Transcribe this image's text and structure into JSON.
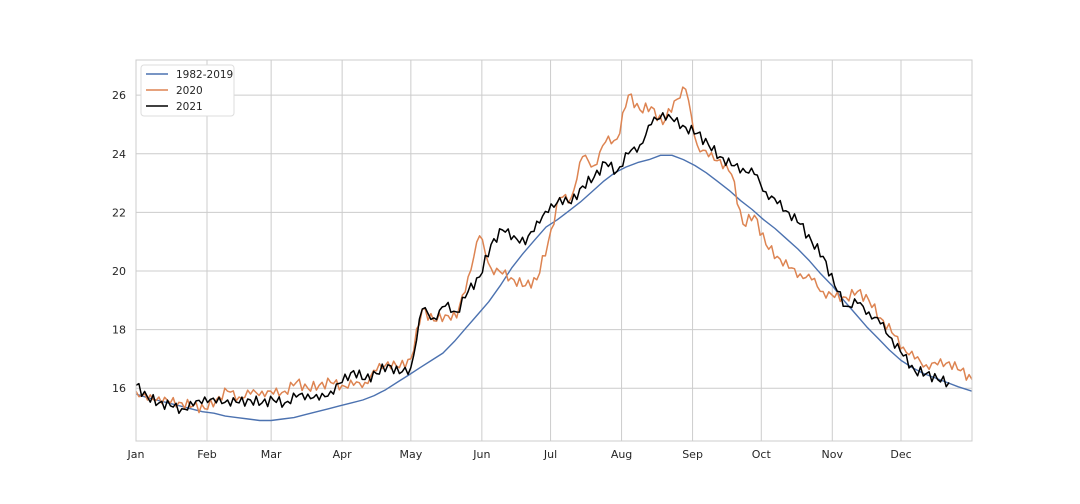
{
  "chart_data": {
    "type": "line",
    "title": "",
    "xlabel": "",
    "ylabel": "",
    "x_unit": "day of year",
    "xlim": [
      1,
      366
    ],
    "ylim": [
      14.2,
      27.2
    ],
    "x_ticks": [
      {
        "day": 1,
        "label": "Jan"
      },
      {
        "day": 32,
        "label": "Feb"
      },
      {
        "day": 60,
        "label": "Mar"
      },
      {
        "day": 91,
        "label": "Apr"
      },
      {
        "day": 121,
        "label": "May"
      },
      {
        "day": 152,
        "label": "Jun"
      },
      {
        "day": 182,
        "label": "Jul"
      },
      {
        "day": 213,
        "label": "Aug"
      },
      {
        "day": 244,
        "label": "Sep"
      },
      {
        "day": 274,
        "label": "Oct"
      },
      {
        "day": 305,
        "label": "Nov"
      },
      {
        "day": 335,
        "label": "Dec"
      }
    ],
    "y_ticks": [
      16,
      18,
      20,
      22,
      24,
      26
    ],
    "grid": true,
    "legend_position": "top-left",
    "series": [
      {
        "name": "1982-2019",
        "color": "#4c72b0",
        "x": [
          1,
          5,
          10,
          15,
          20,
          25,
          30,
          35,
          40,
          45,
          50,
          55,
          60,
          65,
          70,
          75,
          80,
          85,
          90,
          95,
          100,
          105,
          110,
          115,
          120,
          125,
          130,
          135,
          140,
          145,
          150,
          155,
          160,
          165,
          170,
          175,
          180,
          185,
          190,
          195,
          200,
          205,
          210,
          215,
          220,
          225,
          230,
          235,
          240,
          245,
          250,
          255,
          260,
          265,
          270,
          275,
          280,
          285,
          290,
          295,
          300,
          305,
          310,
          315,
          320,
          325,
          330,
          335,
          340,
          345,
          350,
          355,
          360,
          366
        ],
        "y": [
          15.8,
          15.7,
          15.6,
          15.5,
          15.4,
          15.3,
          15.2,
          15.15,
          15.05,
          15.0,
          14.95,
          14.9,
          14.9,
          14.95,
          15.0,
          15.1,
          15.2,
          15.3,
          15.4,
          15.5,
          15.6,
          15.75,
          15.95,
          16.2,
          16.45,
          16.7,
          16.95,
          17.2,
          17.6,
          18.05,
          18.5,
          18.95,
          19.5,
          20.1,
          20.6,
          21.05,
          21.5,
          21.75,
          22.05,
          22.35,
          22.7,
          23.05,
          23.35,
          23.55,
          23.7,
          23.8,
          23.95,
          23.95,
          23.8,
          23.6,
          23.35,
          23.05,
          22.75,
          22.4,
          22.1,
          21.75,
          21.45,
          21.1,
          20.75,
          20.35,
          19.9,
          19.5,
          19.0,
          18.55,
          18.1,
          17.7,
          17.3,
          16.95,
          16.7,
          16.5,
          16.35,
          16.2,
          16.05,
          15.9
        ]
      },
      {
        "name": "2020",
        "color": "#dd8452",
        "x": [
          1,
          6,
          11,
          16,
          21,
          26,
          31,
          36,
          41,
          46,
          51,
          56,
          61,
          66,
          71,
          76,
          81,
          86,
          91,
          96,
          101,
          106,
          111,
          116,
          121,
          126,
          131,
          136,
          141,
          146,
          151,
          156,
          161,
          166,
          171,
          176,
          181,
          186,
          191,
          196,
          201,
          206,
          211,
          216,
          221,
          226,
          231,
          236,
          241,
          246,
          251,
          256,
          261,
          266,
          271,
          276,
          281,
          286,
          291,
          296,
          301,
          306,
          311,
          316,
          321,
          326,
          331,
          336,
          341,
          346,
          351,
          356,
          361,
          366
        ],
        "y": [
          15.9,
          15.6,
          15.7,
          15.5,
          15.5,
          15.4,
          15.3,
          15.6,
          15.9,
          15.7,
          15.8,
          15.9,
          15.8,
          15.9,
          16.2,
          16.0,
          16.1,
          16.2,
          16.1,
          16.1,
          16.2,
          16.6,
          16.9,
          16.7,
          17.0,
          18.7,
          18.3,
          18.5,
          18.4,
          19.8,
          21.2,
          20.1,
          19.9,
          19.7,
          19.5,
          19.7,
          21.0,
          22.5,
          22.5,
          23.9,
          23.6,
          24.4,
          24.5,
          26.0,
          25.5,
          25.6,
          25.0,
          25.8,
          26.2,
          24.3,
          23.9,
          23.8,
          23.3,
          21.6,
          21.9,
          20.9,
          20.5,
          20.1,
          19.9,
          19.7,
          19.3,
          19.1,
          19.1,
          19.3,
          19.0,
          18.4,
          17.9,
          17.4,
          17.0,
          16.8,
          16.8,
          16.9,
          16.6,
          16.3
        ]
      },
      {
        "name": "2021",
        "color": "#000000",
        "x": [
          1,
          6,
          11,
          16,
          21,
          26,
          31,
          36,
          41,
          46,
          51,
          56,
          61,
          66,
          71,
          76,
          81,
          86,
          91,
          96,
          101,
          106,
          111,
          116,
          121,
          126,
          131,
          136,
          141,
          146,
          151,
          156,
          161,
          166,
          171,
          176,
          181,
          186,
          191,
          196,
          201,
          206,
          211,
          216,
          221,
          226,
          231,
          236,
          241,
          246,
          251,
          256,
          261,
          266,
          271,
          276,
          281,
          286,
          291,
          296,
          301,
          306,
          311,
          316,
          321,
          326,
          331,
          336,
          341,
          346,
          351,
          356
        ],
        "y": [
          16.1,
          15.7,
          15.5,
          15.4,
          15.3,
          15.4,
          15.7,
          15.5,
          15.6,
          15.5,
          15.6,
          15.5,
          15.6,
          15.5,
          15.7,
          15.8,
          15.6,
          15.9,
          16.2,
          16.6,
          16.3,
          16.5,
          16.8,
          16.5,
          16.7,
          18.7,
          18.4,
          18.8,
          18.6,
          19.3,
          19.8,
          20.9,
          21.4,
          21.2,
          20.9,
          21.7,
          22.0,
          22.5,
          22.3,
          22.9,
          23.2,
          23.7,
          23.4,
          24.0,
          24.3,
          25.0,
          25.4,
          25.1,
          24.9,
          24.7,
          24.3,
          23.9,
          23.6,
          23.5,
          23.3,
          22.7,
          22.3,
          22.0,
          21.6,
          21.0,
          20.5,
          19.5,
          18.8,
          18.9,
          18.6,
          18.2,
          17.7,
          17.1,
          16.6,
          16.5,
          16.3,
          16.2
        ]
      }
    ]
  }
}
